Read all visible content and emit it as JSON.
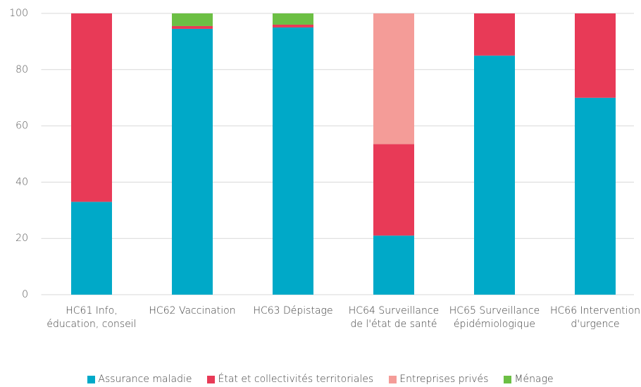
{
  "chart_data": {
    "type": "stacked_bar",
    "categories": [
      "HC61 Info, éducation, conseil",
      "HC62 Vaccination",
      "HC63 Dépistage",
      "HC64 Surveillance de l'état de santé",
      "HC65 Surveillance épidémiologique",
      "HC66 Intervention d'urgence"
    ],
    "series": [
      {
        "name": "Assurance maladie",
        "color": "#00a9c8",
        "values": [
          33,
          94.5,
          95,
          21,
          85,
          70
        ]
      },
      {
        "name": "État et collectivités territoriales",
        "color": "#e83a57",
        "values": [
          67,
          1,
          1,
          32.5,
          15,
          30
        ]
      },
      {
        "name": "Entreprises privés",
        "color": "#f49c98",
        "values": [
          0,
          0,
          0,
          46.5,
          0,
          0
        ]
      },
      {
        "name": "Ménage",
        "color": "#6cbf44",
        "values": [
          0,
          4.5,
          4,
          0,
          0,
          0
        ]
      }
    ],
    "ylim": [
      0,
      100
    ],
    "yticks": [
      0,
      20,
      40,
      60,
      80,
      100
    ],
    "grid": true,
    "legend": "bottom"
  }
}
